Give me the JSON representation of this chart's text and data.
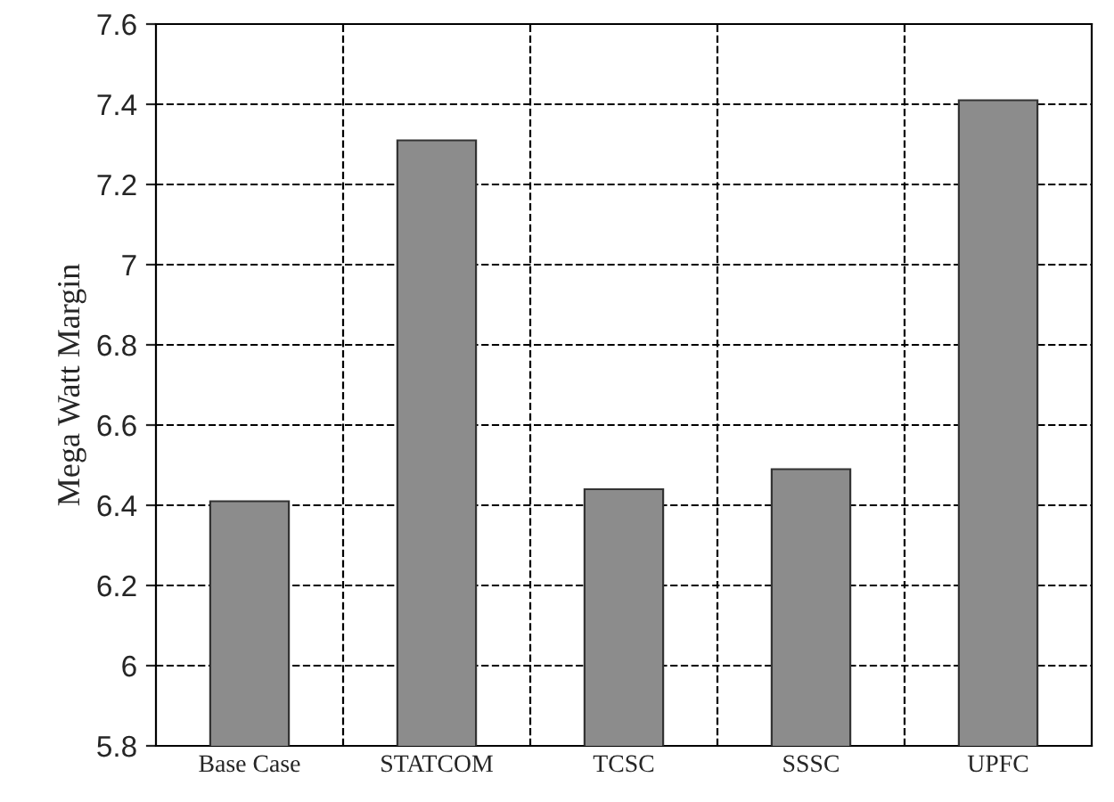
{
  "chart_data": {
    "type": "bar",
    "ylabel": "Mega Watt Margin",
    "categories": [
      "Base Case",
      "STATCOM",
      "TCSC",
      "SSSC",
      "UPFC"
    ],
    "values": [
      6.41,
      7.31,
      6.44,
      6.49,
      7.41
    ],
    "color": "#8c8c8c",
    "ylim": [
      5.8,
      7.6
    ],
    "yticks": [
      {
        "value": 5.8,
        "label": "5.8"
      },
      {
        "value": 6,
        "label": "6"
      },
      {
        "value": 6.2,
        "label": "6.2"
      },
      {
        "value": 6.4,
        "label": "6.4"
      },
      {
        "value": 6.6,
        "label": "6.6"
      },
      {
        "value": 6.8,
        "label": "6.8"
      },
      {
        "value": 7,
        "label": "7"
      },
      {
        "value": 7.2,
        "label": "7.2"
      },
      {
        "value": 7.4,
        "label": "7.4"
      },
      {
        "value": 7.6,
        "label": "7.6"
      }
    ],
    "grid": true,
    "line_style": "dashed"
  }
}
